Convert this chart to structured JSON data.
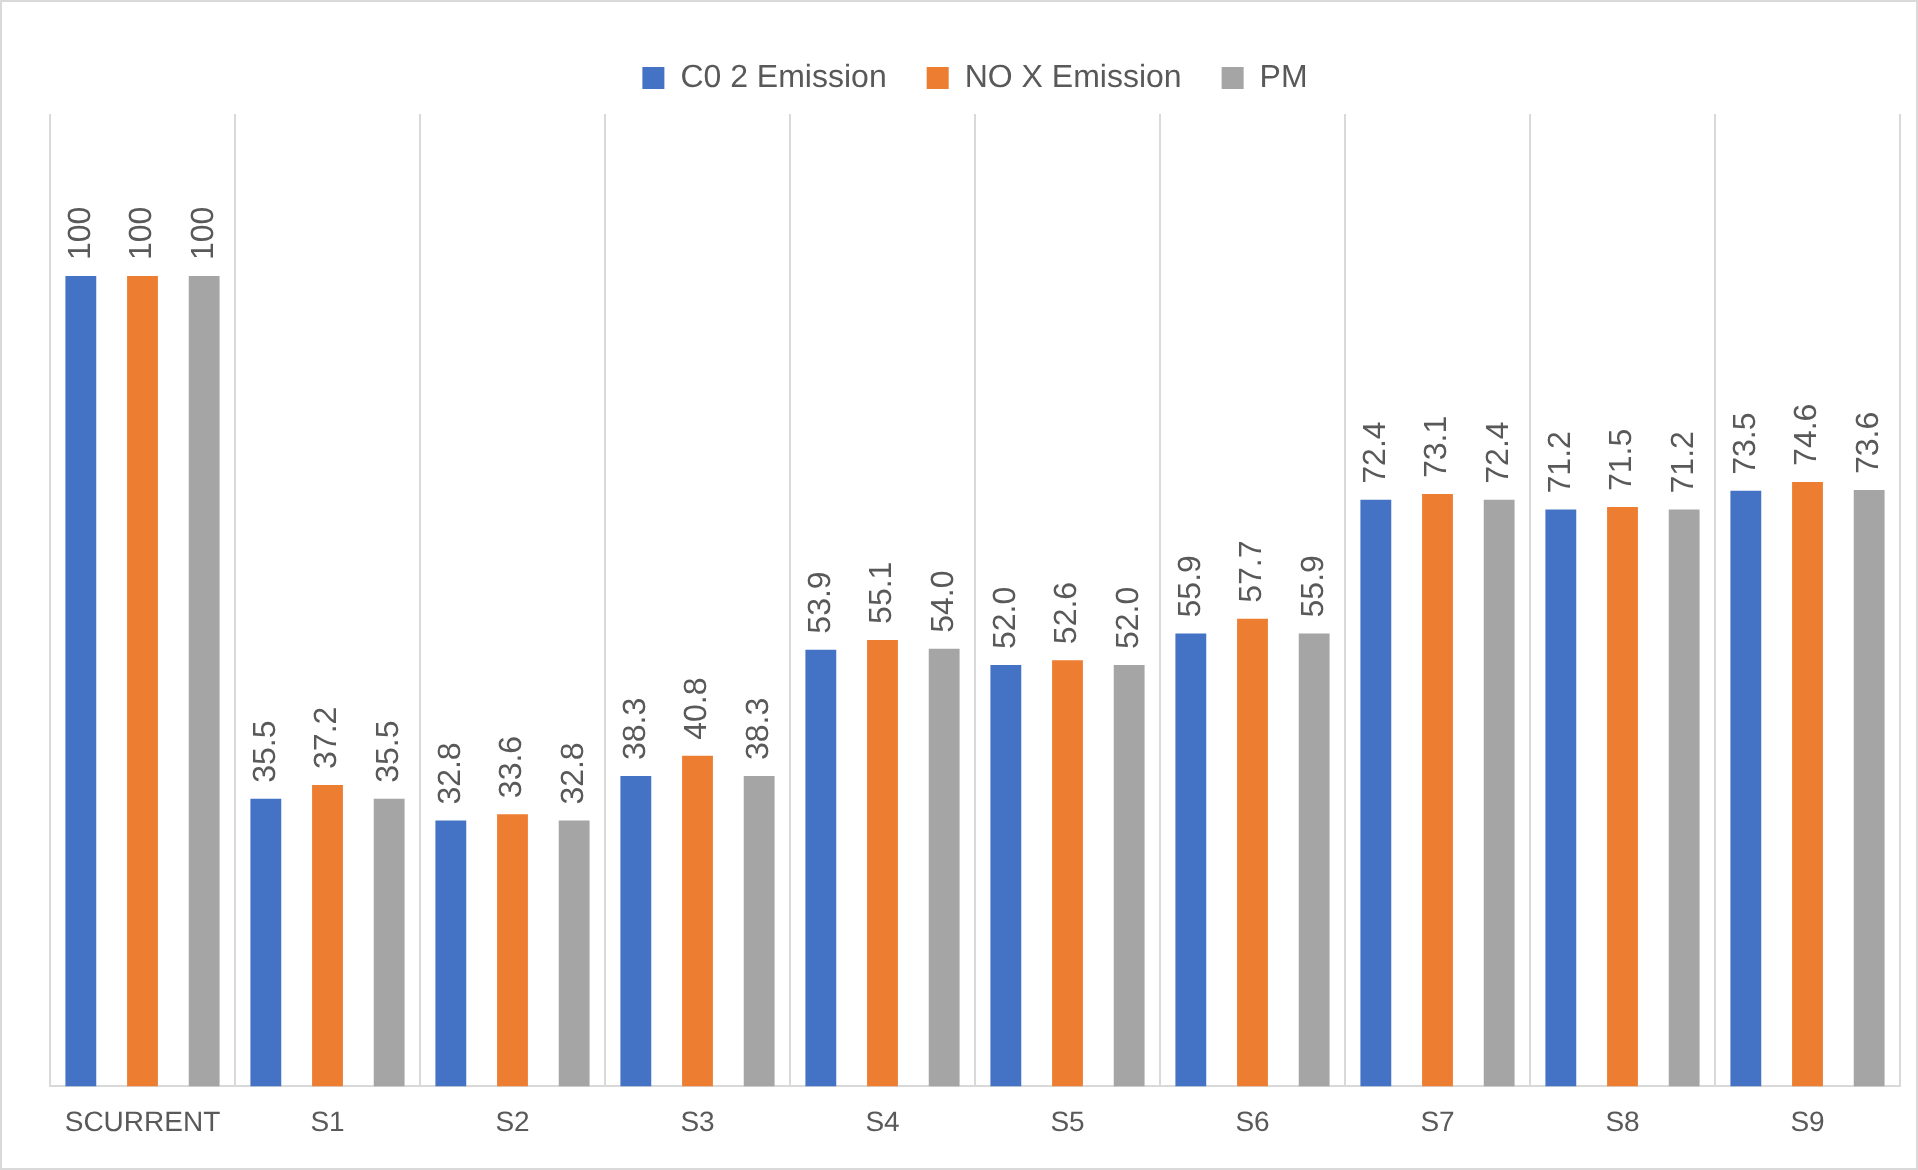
{
  "chart_data": {
    "type": "bar",
    "categories": [
      "SCURRENT",
      "S1",
      "S2",
      "S3",
      "S4",
      "S5",
      "S6",
      "S7",
      "S8",
      "S9"
    ],
    "series": [
      {
        "name": "C0 2 Emission",
        "color": "#4472c4",
        "values": [
          100,
          35.5,
          32.8,
          38.3,
          53.9,
          52.0,
          55.9,
          72.4,
          71.2,
          73.5
        ],
        "value_labels": [
          "100",
          "35.5",
          "32.8",
          "38.3",
          "53.9",
          "52.0",
          "55.9",
          "72.4",
          "71.2",
          "73.5"
        ]
      },
      {
        "name": "NO X Emission",
        "color": "#ed7d31",
        "values": [
          100,
          37.2,
          33.6,
          40.8,
          55.1,
          52.6,
          57.7,
          73.1,
          71.5,
          74.6
        ],
        "value_labels": [
          "100",
          "37.2",
          "33.6",
          "40.8",
          "55.1",
          "52.6",
          "57.7",
          "73.1",
          "71.5",
          "74.6"
        ]
      },
      {
        "name": "PM",
        "color": "#a5a5a5",
        "values": [
          100,
          35.5,
          32.8,
          38.3,
          54.0,
          52.0,
          55.9,
          72.4,
          71.2,
          73.6
        ],
        "value_labels": [
          "100",
          "35.5",
          "32.8",
          "38.3",
          "54.0",
          "52.0",
          "55.9",
          "72.4",
          "71.2",
          "73.6"
        ]
      }
    ],
    "grid": "x",
    "legend": "top",
    "tick_labels": "x"
  }
}
